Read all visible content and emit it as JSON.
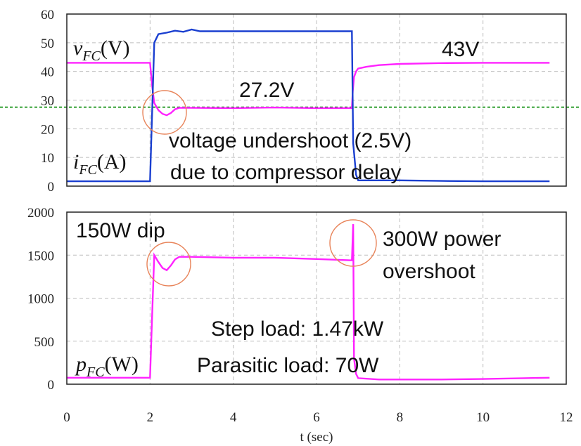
{
  "colors": {
    "voltage": "#ff22ff",
    "current": "#1a3fd0",
    "power": "#ff22ff",
    "reference": "#008800",
    "circle": "#e8845a"
  },
  "chart_data": [
    {
      "type": "line",
      "xlim": [
        0,
        12
      ],
      "ylim": [
        0,
        60
      ],
      "yticks": [
        "0",
        "10",
        "20",
        "30",
        "40",
        "50",
        "60"
      ],
      "grid": true,
      "reference_line": 27.2,
      "series": [
        {
          "label_main": "v",
          "label_sub": "FC",
          "label_unit": "(V)",
          "color": "#ff22ff",
          "x": [
            0,
            2.0,
            2.05,
            2.1,
            2.2,
            2.3,
            2.4,
            2.5,
            2.6,
            2.7,
            3,
            4,
            5,
            6,
            6.85,
            6.87,
            6.9,
            6.95,
            7.0,
            7.2,
            7.5,
            8,
            9,
            10,
            11,
            11.6
          ],
          "y": [
            43,
            43,
            35,
            29,
            26.5,
            25.2,
            24.7,
            25.5,
            26.8,
            27.3,
            27.3,
            27.2,
            27.4,
            27.2,
            27.2,
            33,
            38,
            40,
            41,
            41.6,
            42.2,
            42.6,
            42.9,
            43,
            43,
            43
          ]
        },
        {
          "label_main": "i",
          "label_sub": "FC",
          "label_unit": "(A)",
          "color": "#1a3fd0",
          "x": [
            0,
            2.0,
            2.1,
            2.2,
            2.4,
            2.6,
            2.8,
            3,
            3.2,
            4,
            5,
            6,
            6.85,
            6.88,
            6.95,
            7,
            8,
            9,
            10,
            11,
            11.6
          ],
          "y": [
            1.7,
            1.7,
            50,
            53,
            53.5,
            54.2,
            53.8,
            54.6,
            54,
            54,
            54,
            54,
            54,
            15,
            4,
            2,
            2,
            1.8,
            1.7,
            1.7,
            1.7
          ]
        }
      ],
      "annotations": [
        "27.2V",
        "43V",
        "voltage undershoot (2.5V)",
        "due to compressor delay"
      ]
    },
    {
      "type": "line",
      "xlim": [
        0,
        12
      ],
      "ylim": [
        0,
        2000
      ],
      "yticks": [
        "0",
        "500",
        "1000",
        "1500",
        "2000"
      ],
      "xticks": [
        "0",
        "2",
        "4",
        "6",
        "8",
        "10",
        "12"
      ],
      "xlabel": "t (sec)",
      "grid": true,
      "series": [
        {
          "label_main": "p",
          "label_sub": "FC",
          "label_unit": "(W)",
          "color": "#ff22ff",
          "x": [
            0,
            2.0,
            2.05,
            2.1,
            2.2,
            2.3,
            2.4,
            2.5,
            2.6,
            2.7,
            3,
            4,
            5,
            6,
            6.8,
            6.85,
            6.88,
            6.9,
            6.95,
            7.0,
            7.5,
            8,
            9,
            10,
            11,
            11.6
          ],
          "y": [
            75,
            75,
            800,
            1500,
            1420,
            1350,
            1325,
            1380,
            1450,
            1480,
            1480,
            1470,
            1470,
            1455,
            1440,
            1440,
            1860,
            300,
            120,
            70,
            55,
            55,
            55,
            60,
            70,
            75
          ]
        }
      ],
      "annotations": [
        "150W dip",
        "300W power",
        "overshoot",
        "Step load: 1.47kW",
        "Parasitic load: 70W"
      ]
    }
  ]
}
